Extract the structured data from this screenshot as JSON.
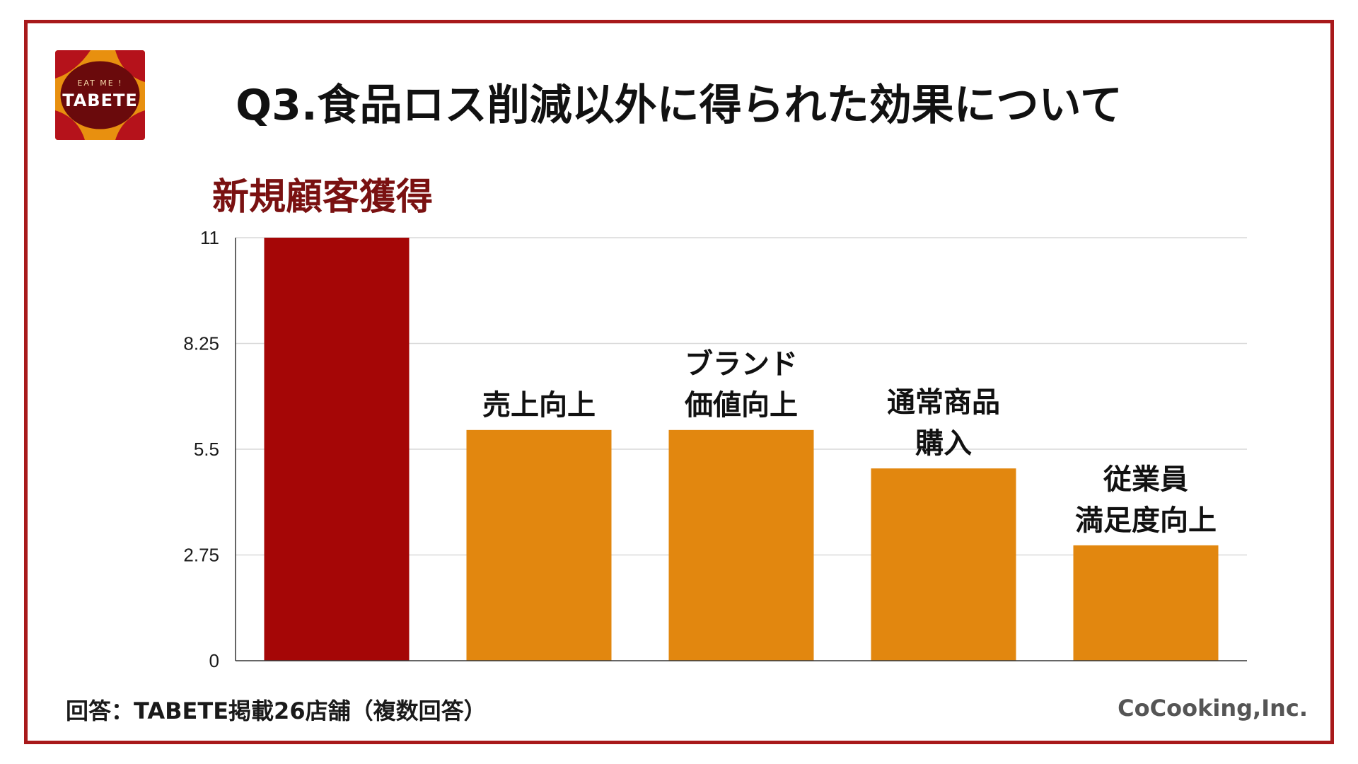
{
  "title": "Q3.食品ロス削減以外に得られた効果について",
  "chart_label": "新規顧客獲得",
  "logo": {
    "top_text": "EAT ME !",
    "main_text": "TABETE",
    "colors": {
      "orange": "#e8900f",
      "red": "#b5121b",
      "dark": "#6a0a0c"
    }
  },
  "footer": {
    "left": "回答：TABETE掲載26店舗（複数回答）",
    "right": "CoCooking,Inc."
  },
  "colors": {
    "frame": "#a8191b",
    "highlight_bar": "#a50606",
    "bar": "#e2870f",
    "grid": "#d9d9d9"
  },
  "chart_data": {
    "type": "bar",
    "title": "",
    "categories": [
      "新規顧客獲得",
      "売上向上",
      "ブランド価値向上",
      "通常商品購入",
      "従業員満足度向上"
    ],
    "category_lines": [
      [],
      [
        "売上向上"
      ],
      [
        "ブランド",
        "価値向上"
      ],
      [
        "通常商品",
        "購入"
      ],
      [
        "従業員",
        "満足度向上"
      ]
    ],
    "values": [
      11,
      6,
      6,
      5,
      3
    ],
    "highlight_index": 0,
    "ylim": [
      0,
      11
    ],
    "yticks": [
      0,
      2.75,
      5.5,
      8.25,
      11
    ],
    "ytick_labels": [
      "0",
      "2.75",
      "5.5",
      "8.25",
      "11"
    ],
    "grid": true,
    "xlabel": "",
    "ylabel": ""
  }
}
